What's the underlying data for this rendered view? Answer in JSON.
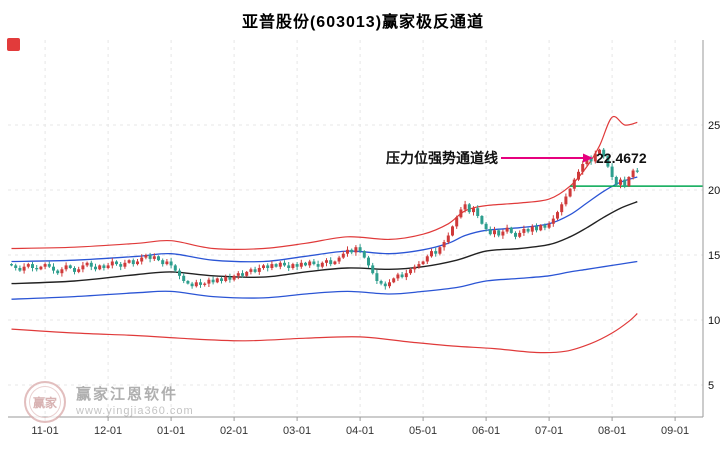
{
  "meta": {
    "title": "亚普股份(603013)赢家极反通道",
    "accent_color": "#e23b3b"
  },
  "annotation": {
    "label": "压力位强势通道线",
    "value": "22.4672",
    "level": 22.4672,
    "arrow_color": "#e6007e"
  },
  "watermark": {
    "logo_text": "赢家",
    "brand": "赢家江恩软件",
    "url": "www.yingjia360.com"
  },
  "chart_data": {
    "type": "candlestick",
    "title": "亚普股份(603013)赢家极反通道",
    "x_axis": {
      "labels": [
        "11-01",
        "12-01",
        "01-01",
        "02-01",
        "03-01",
        "04-01",
        "05-01",
        "06-01",
        "07-01",
        "08-01",
        "09-01"
      ],
      "label_indices": [
        8,
        23,
        38,
        53,
        68,
        83,
        98,
        113,
        128,
        143,
        158
      ]
    },
    "y_axis": {
      "ticks": [
        25,
        20,
        15,
        10,
        5
      ]
    },
    "closes": [
      14.2,
      14.0,
      13.8,
      14.1,
      14.3,
      14.0,
      13.9,
      14.1,
      14.3,
      14.1,
      13.8,
      13.6,
      13.9,
      14.2,
      14.0,
      13.7,
      13.9,
      14.2,
      14.4,
      14.1,
      13.9,
      14.2,
      14.0,
      14.2,
      14.5,
      14.3,
      14.1,
      14.4,
      14.6,
      14.3,
      14.5,
      14.8,
      15.0,
      14.7,
      14.9,
      14.6,
      14.3,
      14.5,
      14.2,
      13.8,
      13.4,
      13.0,
      12.8,
      12.6,
      12.9,
      12.7,
      12.8,
      13.1,
      12.9,
      13.2,
      13.0,
      13.3,
      13.1,
      13.4,
      13.6,
      13.4,
      13.7,
      13.9,
      13.7,
      14.0,
      14.2,
      14.0,
      14.3,
      14.1,
      14.4,
      14.2,
      14.0,
      14.3,
      14.1,
      14.4,
      14.2,
      14.5,
      14.3,
      14.1,
      14.4,
      14.6,
      14.3,
      14.5,
      14.8,
      15.1,
      15.4,
      15.2,
      15.6,
      15.3,
      14.8,
      14.2,
      13.6,
      13.0,
      12.8,
      12.6,
      12.9,
      13.2,
      13.5,
      13.3,
      13.6,
      13.9,
      14.1,
      14.3,
      14.5,
      14.9,
      15.3,
      15.1,
      15.6,
      16.0,
      16.5,
      17.2,
      17.9,
      18.5,
      18.9,
      18.3,
      18.6,
      18.0,
      17.4,
      17.0,
      16.6,
      16.9,
      16.5,
      16.8,
      17.1,
      16.7,
      16.4,
      16.7,
      17.0,
      16.8,
      17.2,
      16.9,
      17.3,
      17.1,
      17.4,
      17.8,
      18.3,
      18.9,
      19.5,
      20.1,
      20.8,
      21.4,
      22.0,
      22.5,
      22.2,
      22.8,
      23.1,
      22.6,
      21.8,
      21.0,
      20.4,
      20.8,
      20.3,
      21.0,
      21.5,
      21.4
    ],
    "channel_lines": [
      {
        "name": "upper-red",
        "color": "#e03a3a",
        "width": 1.2,
        "points": [
          [
            0,
            15.5
          ],
          [
            15,
            15.6
          ],
          [
            30,
            15.9
          ],
          [
            38,
            16.1
          ],
          [
            48,
            15.5
          ],
          [
            60,
            15.5
          ],
          [
            70,
            15.9
          ],
          [
            80,
            16.4
          ],
          [
            90,
            16.2
          ],
          [
            98,
            16.6
          ],
          [
            104,
            17.4
          ],
          [
            108,
            18.4
          ],
          [
            113,
            18.8
          ],
          [
            121,
            19.0
          ],
          [
            128,
            19.3
          ],
          [
            133,
            20.3
          ],
          [
            137,
            21.8
          ],
          [
            140,
            23.4
          ],
          [
            143,
            25.6
          ],
          [
            146,
            25.0
          ],
          [
            149,
            25.2
          ]
        ]
      },
      {
        "name": "upper-blue",
        "color": "#2b55d5",
        "width": 1.3,
        "points": [
          [
            0,
            14.5
          ],
          [
            15,
            14.6
          ],
          [
            30,
            14.9
          ],
          [
            38,
            15.1
          ],
          [
            48,
            14.6
          ],
          [
            60,
            14.5
          ],
          [
            70,
            14.9
          ],
          [
            80,
            15.3
          ],
          [
            90,
            15.1
          ],
          [
            98,
            15.4
          ],
          [
            104,
            15.9
          ],
          [
            108,
            16.5
          ],
          [
            113,
            16.9
          ],
          [
            121,
            17.1
          ],
          [
            128,
            17.4
          ],
          [
            133,
            18.1
          ],
          [
            137,
            19.0
          ],
          [
            141,
            19.9
          ],
          [
            145,
            20.6
          ],
          [
            149,
            21.0
          ]
        ]
      },
      {
        "name": "mid-black",
        "color": "#222222",
        "width": 1.4,
        "points": [
          [
            0,
            12.8
          ],
          [
            15,
            13.0
          ],
          [
            30,
            13.5
          ],
          [
            38,
            13.7
          ],
          [
            48,
            13.4
          ],
          [
            60,
            13.3
          ],
          [
            70,
            13.7
          ],
          [
            80,
            14.0
          ],
          [
            90,
            13.9
          ],
          [
            98,
            14.1
          ],
          [
            106,
            14.6
          ],
          [
            113,
            15.3
          ],
          [
            121,
            15.5
          ],
          [
            128,
            15.8
          ],
          [
            133,
            16.4
          ],
          [
            137,
            17.1
          ],
          [
            141,
            17.9
          ],
          [
            145,
            18.6
          ],
          [
            149,
            19.1
          ]
        ]
      },
      {
        "name": "lower-blue",
        "color": "#2b55d5",
        "width": 1.3,
        "points": [
          [
            0,
            11.6
          ],
          [
            15,
            11.8
          ],
          [
            30,
            12.1
          ],
          [
            38,
            12.2
          ],
          [
            48,
            11.8
          ],
          [
            60,
            11.7
          ],
          [
            70,
            12.0
          ],
          [
            80,
            12.2
          ],
          [
            90,
            12.0
          ],
          [
            98,
            12.2
          ],
          [
            106,
            12.5
          ],
          [
            113,
            13.0
          ],
          [
            121,
            13.2
          ],
          [
            128,
            13.4
          ],
          [
            133,
            13.7
          ],
          [
            137,
            13.9
          ],
          [
            141,
            14.1
          ],
          [
            145,
            14.3
          ],
          [
            149,
            14.5
          ]
        ]
      },
      {
        "name": "lower-red",
        "color": "#e03a3a",
        "width": 1.2,
        "points": [
          [
            0,
            9.3
          ],
          [
            15,
            9.0
          ],
          [
            30,
            8.8
          ],
          [
            40,
            8.6
          ],
          [
            55,
            8.4
          ],
          [
            70,
            8.6
          ],
          [
            83,
            8.7
          ],
          [
            95,
            8.3
          ],
          [
            105,
            8.0
          ],
          [
            115,
            7.8
          ],
          [
            125,
            7.5
          ],
          [
            132,
            7.6
          ],
          [
            138,
            8.2
          ],
          [
            143,
            9.0
          ],
          [
            147,
            9.9
          ],
          [
            149,
            10.5
          ]
        ]
      }
    ],
    "support_line": {
      "value": 20.3,
      "from_index": 133,
      "color": "#00a651"
    },
    "colors": {
      "up": "#cf3a3a",
      "down": "#2e9e8e",
      "grid": "#e7e7e7",
      "axis": "#9a9a9a"
    }
  }
}
